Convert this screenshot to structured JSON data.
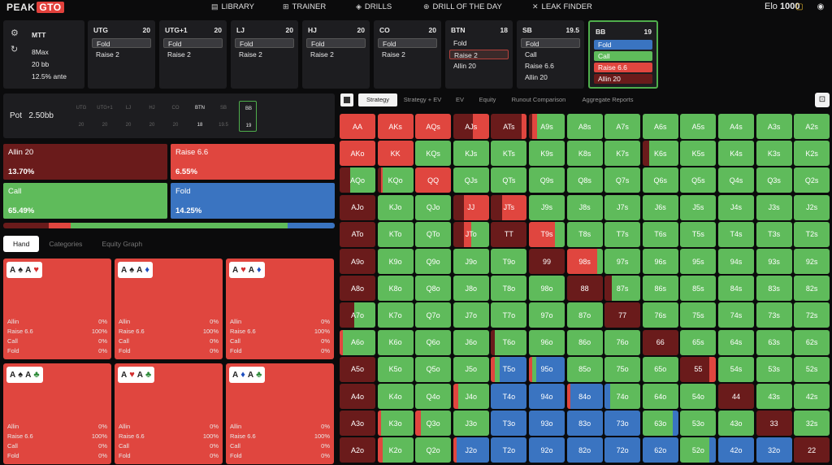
{
  "nav": {
    "logo_left": "PEAK",
    "logo_right": "GTO",
    "items": [
      {
        "label": "LIBRARY",
        "icon": "book-icon"
      },
      {
        "label": "TRAINER",
        "icon": "gamepad-icon"
      },
      {
        "label": "DRILLS",
        "icon": "drills-icon"
      },
      {
        "label": "DRILL OF THE DAY",
        "icon": "plus-circle-icon"
      },
      {
        "label": "LEAK FINDER",
        "icon": "cross-icon"
      }
    ],
    "elo_label": "Elo",
    "elo_value": "1000"
  },
  "game_info": {
    "type": "MTT",
    "format": "8Max",
    "stack": "20 bb",
    "ante": "12.5% ante"
  },
  "positions": [
    {
      "name": "UTG",
      "stack": "20",
      "actions": [
        "Fold",
        "Raise 2"
      ],
      "selected": 0
    },
    {
      "name": "UTG+1",
      "stack": "20",
      "actions": [
        "Fold",
        "Raise 2"
      ],
      "selected": 0
    },
    {
      "name": "LJ",
      "stack": "20",
      "actions": [
        "Fold",
        "Raise 2"
      ],
      "selected": 0
    },
    {
      "name": "HJ",
      "stack": "20",
      "actions": [
        "Fold",
        "Raise 2"
      ],
      "selected": 0
    },
    {
      "name": "CO",
      "stack": "20",
      "actions": [
        "Fold",
        "Raise 2"
      ],
      "selected": 0
    },
    {
      "name": "BTN",
      "stack": "18",
      "actions": [
        "Fold",
        "Raise 2",
        "Allin 20"
      ],
      "selected": 1
    },
    {
      "name": "SB",
      "stack": "19.5",
      "actions": [
        "Fold",
        "Call",
        "Raise 6.6",
        "Allin 20"
      ],
      "selected": 0
    },
    {
      "name": "BB",
      "stack": "19",
      "actions": [
        "Fold",
        "Call",
        "Raise 6.6",
        "Allin 20"
      ],
      "selected": -1
    }
  ],
  "pot": {
    "label": "Pot",
    "value": "2.50bb"
  },
  "seats": [
    {
      "name": "UTG",
      "stack": "20"
    },
    {
      "name": "UTG+1",
      "stack": "20"
    },
    {
      "name": "LJ",
      "stack": "20"
    },
    {
      "name": "HJ",
      "stack": "20"
    },
    {
      "name": "CO",
      "stack": "20"
    },
    {
      "name": "BTN",
      "stack": "18"
    },
    {
      "name": "SB",
      "stack": "19.5"
    },
    {
      "name": "BB",
      "stack": "19"
    }
  ],
  "actions_summary": [
    {
      "label": "Allin 20",
      "value": "13.70%",
      "color": "#6a1b1b"
    },
    {
      "label": "Raise 6.6",
      "value": "6.55%",
      "color": "#e0463f"
    },
    {
      "label": "Call",
      "value": "65.49%",
      "color": "#5fbb5b"
    },
    {
      "label": "Fold",
      "value": "14.25%",
      "color": "#3a74c1"
    }
  ],
  "freq_bar": [
    {
      "color": "#6a1b1b",
      "share": 0.137
    },
    {
      "color": "#e0463f",
      "share": 0.0655
    },
    {
      "color": "#5fbb5b",
      "share": 0.6549
    },
    {
      "color": "#3a74c1",
      "share": 0.1425
    }
  ],
  "hand_tabs": [
    "Hand",
    "Categories",
    "Equity Graph"
  ],
  "combos": [
    {
      "r1": "A",
      "s1": "♠",
      "c1": "#222",
      "r2": "A",
      "s2": "♥",
      "c2": "#d32f2f"
    },
    {
      "r1": "A",
      "s1": "♠",
      "c1": "#222",
      "r2": "A",
      "s2": "♦",
      "c2": "#1e4fbf"
    },
    {
      "r1": "A",
      "s1": "♥",
      "c1": "#d32f2f",
      "r2": "A",
      "s2": "♦",
      "c2": "#1e4fbf"
    },
    {
      "r1": "A",
      "s1": "♠",
      "c1": "#222",
      "r2": "A",
      "s2": "♣",
      "c2": "#2e8b3a"
    },
    {
      "r1": "A",
      "s1": "♥",
      "c1": "#d32f2f",
      "r2": "A",
      "s2": "♣",
      "c2": "#2e8b3a"
    },
    {
      "r1": "A",
      "s1": "♦",
      "c1": "#1e4fbf",
      "r2": "A",
      "s2": "♣",
      "c2": "#2e8b3a"
    }
  ],
  "combo_rows": [
    {
      "label": "Allin",
      "value": "0%"
    },
    {
      "label": "Raise 6.6",
      "value": "100%"
    },
    {
      "label": "Call",
      "value": "0%"
    },
    {
      "label": "Fold",
      "value": "0%"
    }
  ],
  "right_tabs": [
    "Strategy",
    "Strategy + EV",
    "EV",
    "Equity",
    "Runout Comparison",
    "Aggregate Reports"
  ],
  "colors": {
    "allin": "#6a1b1b",
    "raise": "#e0463f",
    "call": "#5fbb5b",
    "fold": "#3a74c1"
  },
  "grid_ranks": [
    "A",
    "K",
    "Q",
    "J",
    "T",
    "9",
    "8",
    "7",
    "6",
    "5",
    "4",
    "3",
    "2"
  ],
  "grid_special": {
    "AA": [
      [
        "r",
        1
      ]
    ],
    "AKs": [
      [
        "r",
        1
      ]
    ],
    "AQs": [
      [
        "r",
        1
      ]
    ],
    "AJs": [
      [
        "a",
        0.55
      ],
      [
        "r",
        0.45
      ]
    ],
    "ATs": [
      [
        "a",
        0.85
      ],
      [
        "r",
        0.15
      ]
    ],
    "A9s": [
      [
        "a",
        0.1
      ],
      [
        "r",
        0.12
      ],
      [
        "c",
        0.78
      ]
    ],
    "AKo": [
      [
        "r",
        1
      ]
    ],
    "KK": [
      [
        "r",
        1
      ]
    ],
    "AQo": [
      [
        "a",
        0.3
      ],
      [
        "c",
        0.7
      ]
    ],
    "KQo": [
      [
        "a",
        0.1
      ],
      [
        "r",
        0.05
      ],
      [
        "c",
        0.85
      ]
    ],
    "QQ": [
      [
        "r",
        1
      ]
    ],
    "K6s": [
      [
        "a",
        0.18
      ],
      [
        "c",
        0.82
      ]
    ],
    "AJo": [
      [
        "a",
        1
      ]
    ],
    "JJ": [
      [
        "a",
        0.3
      ],
      [
        "r",
        0.7
      ]
    ],
    "JTs": [
      [
        "a",
        0.3
      ],
      [
        "r",
        0.7
      ]
    ],
    "ATo": [
      [
        "a",
        1
      ]
    ],
    "JTo": [
      [
        "a",
        0.3
      ],
      [
        "r",
        0.2
      ],
      [
        "c",
        0.5
      ]
    ],
    "TT": [
      [
        "a",
        1
      ]
    ],
    "T9s": [
      [
        "r",
        0.72
      ],
      [
        "c",
        0.28
      ]
    ],
    "A9o": [
      [
        "a",
        1
      ]
    ],
    "99": [
      [
        "a",
        1
      ]
    ],
    "98s": [
      [
        "r",
        0.85
      ],
      [
        "c",
        0.15
      ]
    ],
    "A8o": [
      [
        "a",
        1
      ]
    ],
    "88": [
      [
        "a",
        1
      ]
    ],
    "87s": [
      [
        "a",
        0.2
      ],
      [
        "c",
        0.8
      ]
    ],
    "A7o": [
      [
        "a",
        0.4
      ],
      [
        "c",
        0.6
      ]
    ],
    "77": [
      [
        "a",
        1
      ]
    ],
    "A6o": [
      [
        "r",
        0.1
      ],
      [
        "c",
        0.9
      ]
    ],
    "T6o": [
      [
        "a",
        0.1
      ],
      [
        "c",
        0.9
      ]
    ],
    "66": [
      [
        "a",
        1
      ]
    ],
    "A5o": [
      [
        "a",
        1
      ]
    ],
    "T5o": [
      [
        "r",
        0.1
      ],
      [
        "c",
        0.15
      ],
      [
        "f",
        0.75
      ]
    ],
    "95o": [
      [
        "r",
        0.1
      ],
      [
        "c",
        0.1
      ],
      [
        "f",
        0.8
      ]
    ],
    "55": [
      [
        "a",
        0.8
      ],
      [
        "r",
        0.2
      ]
    ],
    "A4o": [
      [
        "a",
        1
      ]
    ],
    "J4o": [
      [
        "r",
        0.15
      ],
      [
        "c",
        0.85
      ]
    ],
    "T4o": [
      [
        "f",
        1
      ]
    ],
    "94o": [
      [
        "f",
        1
      ]
    ],
    "84o": [
      [
        "r",
        0.1
      ],
      [
        "f",
        0.9
      ]
    ],
    "74o": [
      [
        "f",
        0.15
      ],
      [
        "c",
        0.85
      ]
    ],
    "44": [
      [
        "a",
        1
      ]
    ],
    "A3o": [
      [
        "a",
        1
      ]
    ],
    "K3o": [
      [
        "r",
        0.1
      ],
      [
        "c",
        0.9
      ]
    ],
    "Q3o": [
      [
        "r",
        0.15
      ],
      [
        "c",
        0.85
      ]
    ],
    "T3o": [
      [
        "f",
        1
      ]
    ],
    "93o": [
      [
        "f",
        1
      ]
    ],
    "83o": [
      [
        "f",
        1
      ]
    ],
    "73o": [
      [
        "f",
        1
      ]
    ],
    "63o": [
      [
        "c",
        0.85
      ],
      [
        "f",
        0.15
      ]
    ],
    "33": [
      [
        "a",
        1
      ]
    ],
    "A2o": [
      [
        "a",
        1
      ]
    ],
    "K2o": [
      [
        "r",
        0.15
      ],
      [
        "c",
        0.85
      ]
    ],
    "J2o": [
      [
        "r",
        0.1
      ],
      [
        "f",
        0.9
      ]
    ],
    "T2o": [
      [
        "f",
        1
      ]
    ],
    "92o": [
      [
        "f",
        1
      ]
    ],
    "82o": [
      [
        "f",
        1
      ]
    ],
    "72o": [
      [
        "f",
        1
      ]
    ],
    "62o": [
      [
        "f",
        1
      ]
    ],
    "52o": [
      [
        "c",
        0.8
      ],
      [
        "f",
        0.2
      ]
    ],
    "42o": [
      [
        "f",
        1
      ]
    ],
    "32o": [
      [
        "f",
        1
      ]
    ],
    "22": [
      [
        "a",
        1
      ]
    ]
  }
}
